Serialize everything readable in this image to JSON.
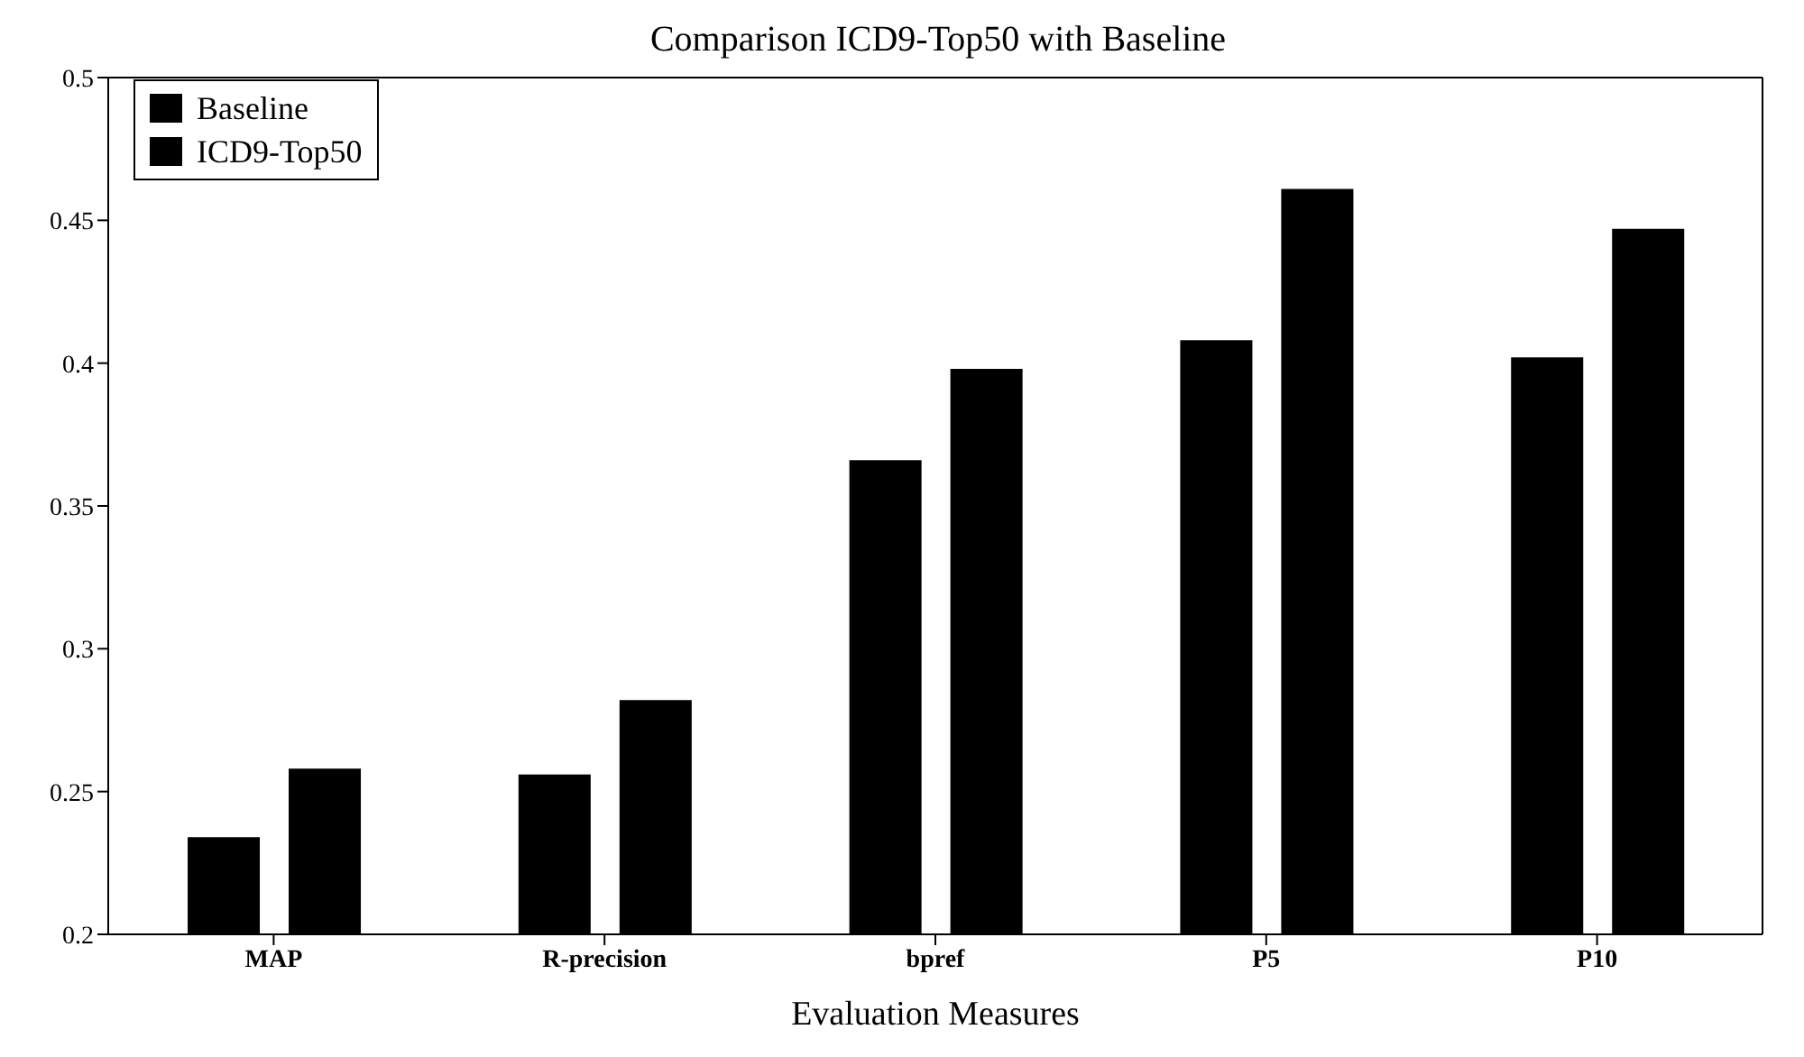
{
  "chart_data": {
    "type": "bar",
    "title": "Comparison ICD9-Top50 with Baseline",
    "xlabel": "Evaluation Measures",
    "categories": [
      "MAP",
      "R-precision",
      "bpref",
      "P5",
      "P10"
    ],
    "series": [
      {
        "name": "Baseline",
        "color": "#000000",
        "values": [
          0.234,
          0.256,
          0.366,
          0.408,
          0.402
        ]
      },
      {
        "name": "ICD9-Top50",
        "color": "#000000",
        "values": [
          0.258,
          0.282,
          0.398,
          0.461,
          0.447
        ]
      }
    ],
    "ylim": [
      0.2,
      0.5
    ],
    "yticks": [
      0.2,
      0.25,
      0.3,
      0.35,
      0.4,
      0.45,
      0.5
    ],
    "legend": "top left"
  }
}
